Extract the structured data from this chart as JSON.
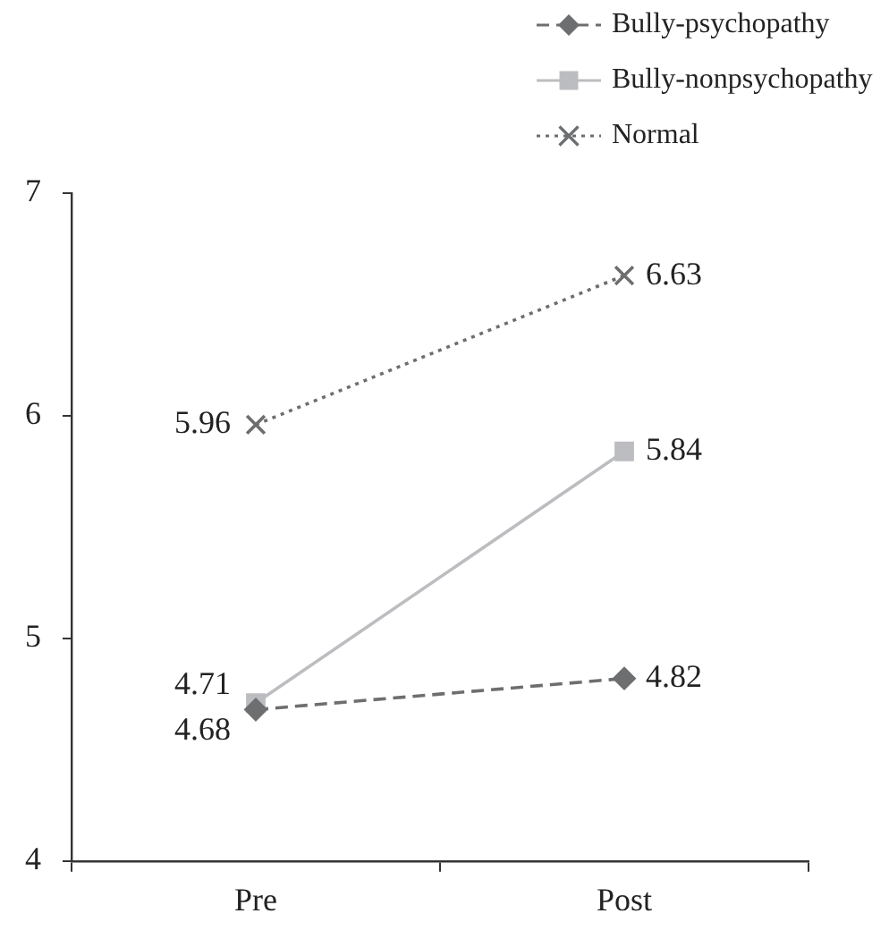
{
  "chart_data": {
    "type": "line",
    "categories": [
      "Pre",
      "Post"
    ],
    "series": [
      {
        "name": "Bully-psychopathy",
        "color": "#6d6e70",
        "values": [
          4.68,
          4.82
        ],
        "marker": "diamond",
        "line_style": "dashed"
      },
      {
        "name": "Bully-nonpsychopathy",
        "color": "#bcbdc0",
        "values": [
          4.71,
          5.84
        ],
        "marker": "square",
        "line_style": "solid"
      },
      {
        "name": "Normal",
        "color": "#6d6e70",
        "values": [
          5.96,
          6.63
        ],
        "marker": "cross",
        "line_style": "dotted"
      }
    ],
    "ylim": [
      4,
      7
    ],
    "yticks": [
      4,
      5,
      6,
      7
    ],
    "grid": false,
    "legend": "top right",
    "data_labels": true
  }
}
